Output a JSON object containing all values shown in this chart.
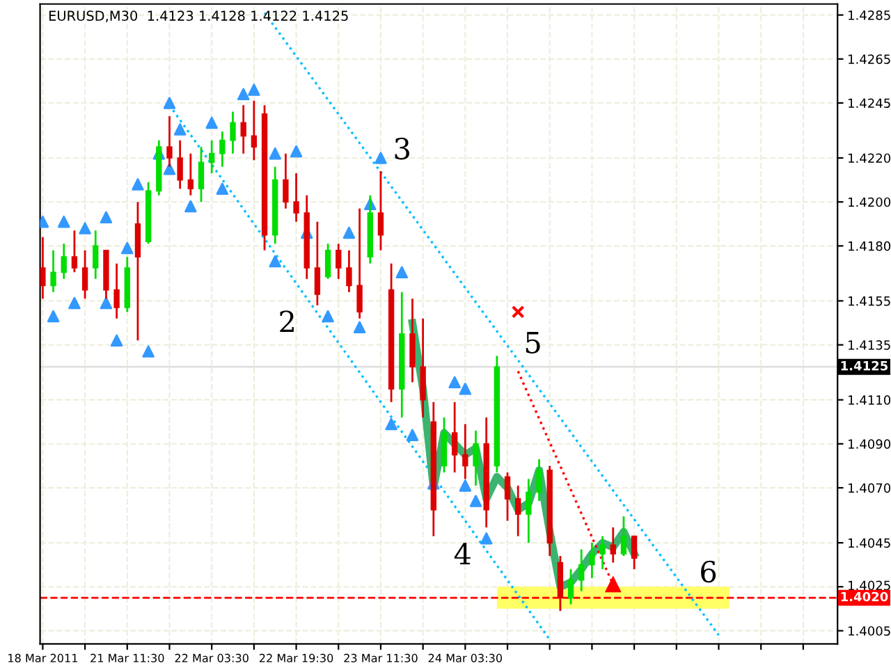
{
  "chart_data": {
    "type": "candlestick",
    "title": "EURUSD,M30  1.4123 1.4128 1.4122 1.4125",
    "categories": [
      "18 Mar 2011",
      null,
      null,
      null,
      null,
      null,
      null,
      null,
      "21 Mar 11:30",
      null,
      null,
      null,
      null,
      null,
      null,
      null,
      "22 Mar 03:30",
      null,
      null,
      null,
      null,
      null,
      null,
      null,
      "22 Mar 19:30",
      null,
      null,
      null,
      null,
      null,
      null,
      null,
      "23 Mar 11:30",
      null,
      null,
      null,
      null,
      null,
      null,
      null,
      "24 Mar 03:30",
      null,
      null,
      null,
      null,
      null,
      null,
      null,
      null,
      null,
      null,
      null,
      null,
      null,
      null,
      null,
      null,
      null,
      null,
      null,
      null,
      null,
      null,
      null,
      null,
      null,
      null,
      null,
      null,
      null,
      null,
      null,
      null,
      null,
      null
    ],
    "ohlc": [
      [
        1.417,
        1.4184,
        1.4156,
        1.4162
      ],
      [
        1.4162,
        1.4178,
        1.4159,
        1.4168
      ],
      [
        1.4168,
        1.4181,
        1.4165,
        1.4175
      ],
      [
        1.4175,
        1.4187,
        1.4168,
        1.417
      ],
      [
        1.417,
        1.4178,
        1.4156,
        1.416
      ],
      [
        1.417,
        1.4187,
        1.4165,
        1.418
      ],
      [
        1.4178,
        1.4178,
        1.4156,
        1.416
      ],
      [
        1.416,
        1.4172,
        1.4147,
        1.4152
      ],
      [
        1.4152,
        1.4175,
        1.415,
        1.417
      ],
      [
        1.419,
        1.42,
        1.4137,
        1.4175
      ],
      [
        1.4182,
        1.4209,
        1.4181,
        1.4205
      ],
      [
        1.4205,
        1.4228,
        1.4203,
        1.4225
      ],
      [
        1.4225,
        1.4239,
        1.4216,
        1.422
      ],
      [
        1.422,
        1.4228,
        1.4206,
        1.421
      ],
      [
        1.421,
        1.4222,
        1.4203,
        1.4206
      ],
      [
        1.4206,
        1.4225,
        1.42,
        1.4218
      ],
      [
        1.4218,
        1.4228,
        1.4213,
        1.4222
      ],
      [
        1.4222,
        1.4232,
        1.4216,
        1.4228
      ],
      [
        1.4228,
        1.4241,
        1.4222,
        1.4236
      ],
      [
        1.4236,
        1.4244,
        1.4222,
        1.423
      ],
      [
        1.423,
        1.4246,
        1.4219,
        1.4225
      ],
      [
        1.424,
        1.4244,
        1.4178,
        1.4185
      ],
      [
        1.4185,
        1.4216,
        1.4181,
        1.421
      ],
      [
        1.421,
        1.4222,
        1.4197,
        1.42
      ],
      [
        1.42,
        1.4213,
        1.4191,
        1.4195
      ],
      [
        1.4195,
        1.4203,
        1.4165,
        1.417
      ],
      [
        1.417,
        1.4191,
        1.4153,
        1.4158
      ],
      [
        1.4166,
        1.4181,
        1.4165,
        1.4178
      ],
      [
        1.4178,
        1.4181,
        1.4165,
        1.417
      ],
      [
        1.417,
        1.4178,
        1.4159,
        1.4162
      ],
      [
        1.4162,
        1.4197,
        1.4147,
        1.415
      ],
      [
        1.4175,
        1.4203,
        1.4172,
        1.4195
      ],
      [
        1.4195,
        1.4214,
        1.4178,
        1.4185
      ],
      [
        1.416,
        1.4172,
        1.4109,
        1.4115
      ],
      [
        1.4115,
        1.4159,
        1.4102,
        1.414
      ],
      [
        1.414,
        1.4156,
        1.4118,
        1.4125
      ],
      [
        1.4125,
        1.4147,
        1.4102,
        1.411
      ],
      [
        1.41,
        1.4109,
        1.4048,
        1.406
      ],
      [
        1.408,
        1.4102,
        1.4077,
        1.4095
      ],
      [
        1.4095,
        1.4109,
        1.4077,
        1.4085
      ],
      [
        1.4085,
        1.4099,
        1.4074,
        1.408
      ],
      [
        1.408,
        1.4096,
        1.4071,
        1.409
      ],
      [
        1.409,
        1.4102,
        1.4052,
        1.406
      ],
      [
        1.408,
        1.413,
        1.4077,
        1.4125
      ],
      [
        1.4075,
        1.4077,
        1.4055,
        1.4065
      ],
      [
        1.4065,
        1.4071,
        1.4048,
        1.4058
      ],
      [
        1.4058,
        1.4074,
        1.4045,
        1.4068
      ],
      [
        1.4068,
        1.4083,
        1.4064,
        1.4078
      ],
      [
        1.4078,
        1.408,
        1.4039,
        1.4045
      ],
      [
        1.4036,
        1.4039,
        1.4014,
        1.402
      ],
      [
        1.402,
        1.4033,
        1.4017,
        1.4028
      ],
      [
        1.4028,
        1.4042,
        1.4023,
        1.4035
      ],
      [
        1.4035,
        1.4045,
        1.4029,
        1.404
      ],
      [
        1.404,
        1.4048,
        1.4033,
        1.4044
      ],
      [
        1.4044,
        1.4052,
        1.4036,
        1.404
      ],
      [
        1.404,
        1.4057,
        1.4039,
        1.4048
      ],
      [
        1.4048,
        1.4048,
        1.4033,
        1.4038
      ],
      null,
      null,
      null,
      null,
      null,
      null,
      null,
      null,
      null,
      null,
      null,
      null,
      null,
      null,
      null,
      null,
      null,
      null
    ],
    "colors": [
      "#dd0000",
      "#00dd00",
      "#00dd00",
      "#dd0000",
      "#dd0000",
      "#00dd00",
      "#dd0000",
      "#dd0000",
      "#00dd00",
      "#dd0000",
      "#00dd00",
      "#00dd00",
      "#dd0000",
      "#dd0000",
      "#dd0000",
      "#00dd00",
      "#00dd00",
      "#00dd00",
      "#00dd00",
      "#dd0000",
      "#dd0000",
      "#dd0000",
      "#00dd00",
      "#dd0000",
      "#dd0000",
      "#dd0000",
      "#dd0000",
      "#00dd00",
      "#dd0000",
      "#dd0000",
      "#dd0000",
      "#00dd00",
      "#dd0000",
      "#dd0000",
      "#00dd00",
      "#dd0000",
      "#dd0000",
      "#dd0000",
      "#00dd00",
      "#dd0000",
      "#dd0000",
      "#00dd00",
      "#dd0000",
      "#00dd00",
      "#dd0000",
      "#dd0000",
      "#00dd00",
      "#00dd00",
      "#dd0000",
      "#dd0000",
      "#00dd00",
      "#00dd00",
      "#00dd00",
      "#00dd00",
      "#dd0000",
      "#00dd00",
      "#dd0000",
      null,
      null,
      null,
      null,
      null,
      null,
      null,
      null,
      null,
      null,
      null,
      null,
      null,
      null,
      null,
      null,
      null,
      null
    ],
    "series": [
      {
        "type": "line",
        "color": "#ffff66",
        "line_style": "solid",
        "values": [
          null,
          null,
          null,
          null,
          null,
          null,
          null,
          null,
          null,
          null,
          null,
          null,
          null,
          null,
          null,
          null,
          null,
          null,
          null,
          null,
          null,
          null,
          null,
          null,
          null,
          null,
          null,
          null,
          null,
          null,
          null,
          null,
          null,
          null,
          null,
          null,
          null,
          null,
          null,
          null,
          null,
          null,
          null,
          null,
          null,
          null,
          null,
          null,
          null,
          null,
          null,
          null,
          null,
          null,
          null,
          null,
          null,
          null,
          null,
          null,
          null,
          null,
          null,
          null,
          null,
          null,
          null,
          null,
          null,
          null,
          null,
          null,
          null,
          null,
          null
        ],
        "lower": [
          null,
          null,
          null,
          null,
          null,
          null,
          null,
          null,
          null,
          null,
          null,
          null,
          null,
          null,
          null,
          null,
          null,
          null,
          null,
          null,
          null,
          null,
          null,
          null,
          null,
          null,
          null,
          null,
          null,
          null,
          null,
          null,
          null,
          null,
          null,
          null,
          null,
          null,
          null,
          null,
          null,
          null,
          null,
          1.4015,
          null,
          null,
          null,
          null,
          null,
          null,
          null,
          null,
          null,
          null,
          null,
          null,
          null,
          null,
          null,
          null,
          null,
          null,
          null,
          null,
          null,
          1.4015,
          null,
          null,
          null,
          null,
          null,
          null,
          null,
          null,
          null
        ],
        "upper": [
          null,
          null,
          null,
          null,
          null,
          null,
          null,
          null,
          null,
          null,
          null,
          null,
          null,
          null,
          null,
          null,
          null,
          null,
          null,
          null,
          null,
          null,
          null,
          null,
          null,
          null,
          null,
          null,
          null,
          null,
          null,
          null,
          null,
          null,
          null,
          null,
          null,
          null,
          null,
          null,
          null,
          null,
          null,
          1.4025,
          null,
          null,
          null,
          null,
          null,
          null,
          null,
          null,
          null,
          null,
          null,
          null,
          null,
          null,
          null,
          null,
          null,
          null,
          null,
          null,
          null,
          1.4025,
          null,
          null,
          null,
          null,
          null,
          null,
          null,
          null,
          null
        ]
      },
      {
        "type": "line",
        "color": "#00bfff",
        "line_style": "dotted",
        "values": [
          null,
          null,
          null,
          null,
          null,
          null,
          null,
          null,
          null,
          null,
          null,
          null,
          null,
          null,
          null,
          null,
          null,
          null,
          null,
          null,
          null,
          1.4286,
          null,
          null,
          null,
          null,
          null,
          null,
          null,
          null,
          null,
          null,
          null,
          null,
          null,
          null,
          null,
          null,
          null,
          null,
          null,
          null,
          null,
          null,
          null,
          null,
          null,
          null,
          null,
          null,
          null,
          null,
          null,
          null,
          null,
          null,
          null,
          null,
          null,
          null,
          null,
          null,
          null,
          null,
          1.4003,
          null,
          null,
          null,
          null,
          null,
          null,
          null,
          null,
          null,
          null
        ]
      },
      {
        "type": "line",
        "color": "#00bfff",
        "line_style": "dotted",
        "values": [
          null,
          null,
          null,
          null,
          null,
          null,
          null,
          null,
          null,
          null,
          null,
          null,
          1.4244,
          null,
          null,
          null,
          null,
          null,
          null,
          null,
          null,
          null,
          null,
          null,
          null,
          null,
          null,
          null,
          null,
          null,
          null,
          null,
          null,
          null,
          null,
          null,
          null,
          null,
          null,
          null,
          null,
          null,
          null,
          null,
          null,
          null,
          null,
          null,
          1.4001,
          null,
          null,
          null,
          null,
          null,
          null,
          null,
          null,
          null,
          null,
          null,
          null,
          null,
          null,
          null,
          null,
          null,
          null,
          null,
          null,
          null,
          null,
          null,
          null,
          null,
          null
        ]
      },
      {
        "type": "line",
        "color": "#3cb371",
        "line_style": "solid",
        "values": [
          null,
          null,
          null,
          null,
          null,
          null,
          null,
          null,
          null,
          null,
          null,
          null,
          null,
          null,
          null,
          null,
          null,
          null,
          null,
          null,
          null,
          null,
          null,
          null,
          null,
          null,
          null,
          null,
          null,
          null,
          null,
          null,
          null,
          null,
          null,
          1.4145,
          1.4115,
          1.407,
          1.4095,
          1.409,
          1.4085,
          1.4088,
          1.4065,
          1.4075,
          1.407,
          1.406,
          1.4063,
          1.4078,
          1.405,
          1.4025,
          1.4027,
          1.4033,
          1.404,
          1.4045,
          1.4043,
          1.405,
          1.404,
          null,
          null,
          null,
          null,
          null,
          null,
          null,
          null,
          null,
          null,
          null,
          null,
          null,
          null,
          null,
          null,
          null,
          null
        ]
      },
      {
        "type": "line",
        "color": "#ff0000",
        "line_style": "dotted",
        "marker": "triangle",
        "values": [
          null,
          null,
          null,
          null,
          null,
          null,
          null,
          null,
          null,
          null,
          null,
          null,
          null,
          null,
          null,
          null,
          null,
          null,
          null,
          null,
          null,
          null,
          null,
          null,
          null,
          null,
          null,
          null,
          null,
          null,
          null,
          null,
          null,
          null,
          null,
          null,
          null,
          null,
          null,
          null,
          null,
          null,
          null,
          null,
          null,
          1.4123,
          null,
          null,
          null,
          null,
          null,
          null,
          null,
          null,
          1.4026,
          null,
          null,
          null,
          null,
          null,
          null,
          null,
          null,
          null,
          null,
          null,
          null,
          null,
          null,
          null,
          null,
          null,
          null,
          null,
          null
        ]
      },
      {
        "type": "scatter",
        "color": "#ff0000",
        "marker": "cross",
        "values": [
          null,
          null,
          null,
          null,
          null,
          null,
          null,
          null,
          null,
          null,
          null,
          null,
          null,
          null,
          null,
          null,
          null,
          null,
          null,
          null,
          null,
          null,
          null,
          null,
          null,
          null,
          null,
          null,
          null,
          null,
          null,
          null,
          null,
          null,
          null,
          null,
          null,
          null,
          null,
          null,
          null,
          null,
          null,
          null,
          null,
          1.415,
          null,
          null,
          null,
          null,
          null,
          null,
          null,
          null,
          null,
          null,
          null,
          null,
          null,
          null,
          null,
          null,
          null,
          null,
          null,
          null,
          null,
          null,
          null,
          null,
          null,
          null,
          null,
          null,
          null
        ]
      },
      {
        "type": "scatter",
        "color": "#3399ff",
        "marker": "triangle",
        "values": [
          1.4191,
          null,
          1.4191,
          null,
          1.4188,
          null,
          1.4193,
          null,
          1.4179,
          1.4208,
          null,
          1.4222,
          1.4245,
          1.4233,
          null,
          null,
          1.4236,
          null,
          null,
          1.4249,
          1.4251,
          null,
          1.4222,
          null,
          1.4223,
          null,
          null,
          null,
          null,
          1.4186,
          null,
          1.4199,
          1.422,
          null,
          1.4168,
          null,
          null,
          null,
          null,
          1.4118,
          1.4115,
          null,
          null,
          null,
          null,
          null,
          null,
          null,
          null,
          null,
          null,
          null,
          null,
          null,
          null,
          null,
          null,
          null,
          null,
          null,
          null,
          null,
          null,
          null,
          null,
          null,
          null,
          null,
          null,
          null,
          null,
          null,
          null,
          null,
          null
        ]
      },
      {
        "type": "scatter",
        "color": "#3399ff",
        "marker": "triangle",
        "values": [
          null,
          1.4148,
          null,
          1.4154,
          null,
          null,
          1.4154,
          1.4137,
          null,
          null,
          1.4132,
          null,
          1.4215,
          null,
          1.4198,
          null,
          null,
          1.4206,
          null,
          null,
          null,
          null,
          1.4173,
          null,
          null,
          1.4186,
          null,
          1.4148,
          null,
          null,
          1.4143,
          null,
          null,
          1.4099,
          null,
          1.4094,
          null,
          1.4072,
          null,
          null,
          1.4071,
          1.4064,
          1.4047,
          null,
          null,
          null,
          null,
          null,
          null,
          null,
          null,
          null,
          null,
          null,
          null,
          null,
          null,
          null,
          null,
          null,
          null,
          null,
          null,
          null,
          null,
          null,
          null,
          null,
          null,
          null,
          null,
          null,
          null,
          null,
          null
        ]
      }
    ],
    "ref_lines": [
      {
        "axis": "y",
        "value": 1.402,
        "label": "1.4020",
        "color": "#ff0000",
        "line_style": "dashed"
      },
      {
        "axis": "y",
        "value": 1.4125,
        "label": "1.4125",
        "color": "#000000",
        "line_style": "solid"
      }
    ],
    "annotations": [
      "2",
      "3",
      "4",
      "5",
      "6"
    ],
    "ylim": [
      1.3999,
      1.429
    ],
    "yticks": [
      1.4285,
      1.4265,
      1.4245,
      {
        "value": 1.422,
        "label": "1.4220"
      },
      {
        "value": 1.42,
        "label": "1.4200"
      },
      {
        "value": 1.418,
        "label": "1.4180"
      },
      1.4155,
      1.4135,
      {
        "value": 1.411,
        "label": "1.4110"
      },
      {
        "value": 1.409,
        "label": "1.4090"
      },
      {
        "value": 1.407,
        "label": "1.4070"
      },
      1.4045,
      1.4025,
      1.4005
    ],
    "grid": true
  }
}
